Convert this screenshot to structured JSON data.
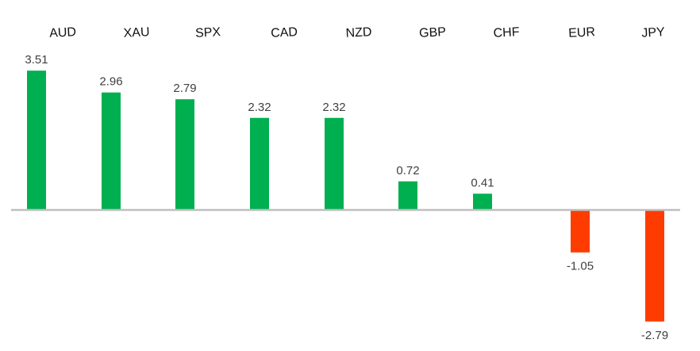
{
  "chart_data": {
    "type": "bar",
    "title": "",
    "xlabel": "",
    "ylabel": "",
    "categories": [
      "AUD",
      "XAU",
      "SPX",
      "CAD",
      "NZD",
      "GBP",
      "CHF",
      "EUR",
      "JPY"
    ],
    "values": [
      3.51,
      2.96,
      2.79,
      2.32,
      2.32,
      0.72,
      0.41,
      -1.05,
      -2.79
    ],
    "value_labels": [
      "3.51",
      "2.96",
      "2.79",
      "2.32",
      "2.32",
      "0.72",
      "0.41",
      "-1.05",
      "-2.79"
    ],
    "ylim": [
      -3.2,
      4.5
    ],
    "grid": false,
    "legend": "none",
    "colors": {
      "positive": "#00B050",
      "negative": "#FF3C00",
      "axis": "#BFBFBF"
    }
  }
}
